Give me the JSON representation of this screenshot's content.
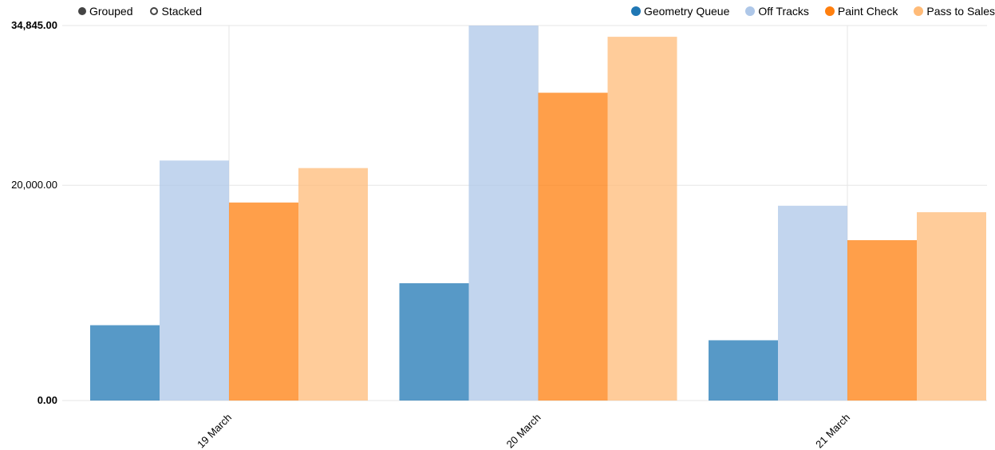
{
  "controls": [
    {
      "label": "Grouped",
      "selected": true
    },
    {
      "label": "Stacked",
      "selected": false
    }
  ],
  "chart_data": {
    "type": "bar",
    "mode": "grouped",
    "categories": [
      "19 March",
      "20 March",
      "21 March"
    ],
    "series": [
      {
        "name": "Geometry Queue",
        "color": "#1f77b4",
        "values": [
          7000,
          10900,
          5600
        ]
      },
      {
        "name": "Off Tracks",
        "color": "#aec7e8",
        "values": [
          22300,
          34845,
          18100
        ]
      },
      {
        "name": "Paint Check",
        "color": "#ff7f0e",
        "values": [
          18400,
          28600,
          14900
        ]
      },
      {
        "name": "Pass to Sales",
        "color": "#ffbb78",
        "values": [
          21600,
          33800,
          17500
        ]
      }
    ],
    "ylim": [
      0,
      34845
    ],
    "y_ticks": [
      "0.00",
      "20,000.00",
      "34,845.00"
    ],
    "y_tick_values": [
      0,
      20000,
      34845
    ],
    "grid": true,
    "legend_position": "top-right",
    "title": "",
    "xlabel": "",
    "ylabel": ""
  }
}
